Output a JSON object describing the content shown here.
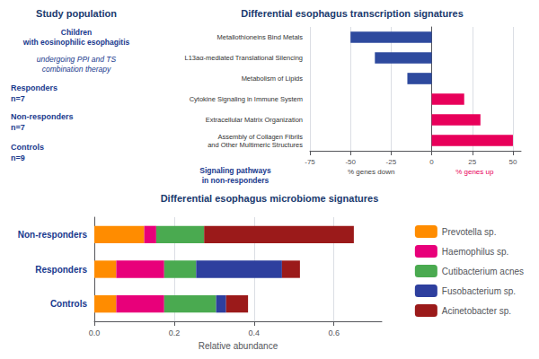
{
  "chart_data": [
    {
      "type": "text",
      "title": "Study population",
      "annotations": [
        "Children\nwith eosinophilic esophagitis",
        "undergoing PPI and TS\ncombination therapy",
        "Responders",
        "n=7",
        "Non-responders",
        "n=7",
        "Controls",
        "n=9"
      ]
    },
    {
      "type": "bar",
      "title": "Differential esophagus transcription signatures",
      "orientation": "horizontal",
      "categories": [
        "Assembly of Collagen Fibrils\nand Other Multimeric Structures",
        "Extracellular Matrix Organization",
        "Cytokine Signaling in Immune System",
        "Metabolism of Lipids",
        "L13aα-mediated Translational Silencing",
        "Metallothioneins Bind Metals"
      ],
      "values": [
        50,
        30,
        20,
        -15,
        -35,
        -50
      ],
      "colors": [
        "#e8005a",
        "#e8005a",
        "#e8005a",
        "#2e4a9e",
        "#2e4a9e",
        "#2e4a9e"
      ],
      "xlim": [
        -75,
        55
      ],
      "xticks": [
        -75,
        -50,
        -25,
        0,
        25,
        50
      ],
      "grid": true,
      "annotations": [
        "% genes down",
        "% genes up",
        "Signaling pathways\nin non-responders"
      ]
    },
    {
      "type": "bar",
      "title": "Differential esophagus microbiome signatures",
      "orientation": "horizontal",
      "stacked": true,
      "categories": [
        "Controls",
        "Responders",
        "Non-responders"
      ],
      "series": [
        {
          "name": "Prevotella sp.",
          "color": "#ff8c00",
          "values": [
            0.055,
            0.055,
            0.125
          ]
        },
        {
          "name": "Haemophilus sp.",
          "color": "#e8007a",
          "values": [
            0.12,
            0.12,
            0.03
          ]
        },
        {
          "name": "Cutibacterium acnes",
          "color": "#4aaa50",
          "values": [
            0.13,
            0.08,
            0.12
          ]
        },
        {
          "name": "Fusobacterium sp.",
          "color": "#2e3f9e",
          "values": [
            0.025,
            0.215,
            0.0
          ]
        },
        {
          "name": "Acinetobacter sp.",
          "color": "#9b1a1a",
          "values": [
            0.055,
            0.045,
            0.375
          ]
        }
      ],
      "xlabel": "Relative abundance",
      "xlim": [
        0.0,
        0.72
      ],
      "xticks": [
        {
          "value": 0.0,
          "label": "0.0"
        },
        0.2,
        0.4,
        0.6
      ],
      "grid": true,
      "legend": "right"
    }
  ]
}
